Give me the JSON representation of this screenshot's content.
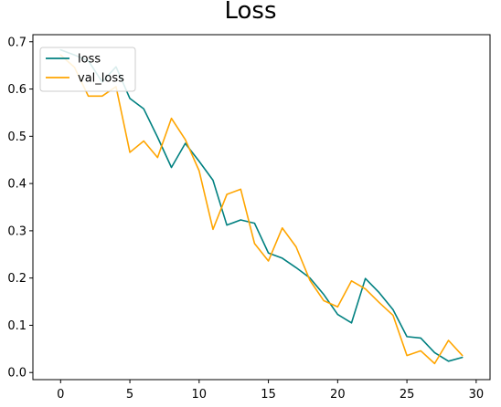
{
  "chart_data": {
    "type": "line",
    "title": "Loss",
    "xlabel": "",
    "ylabel": "",
    "xlim": [
      -2,
      31
    ],
    "ylim": [
      -0.015,
      0.715
    ],
    "xticks": [
      0,
      5,
      10,
      15,
      20,
      25,
      30
    ],
    "yticks": [
      0.0,
      0.1,
      0.2,
      0.3,
      0.4,
      0.5,
      0.6,
      0.7
    ],
    "grid": false,
    "legend_placement": "upper-left",
    "x": [
      0,
      1,
      2,
      3,
      4,
      5,
      6,
      7,
      8,
      9,
      10,
      11,
      12,
      13,
      14,
      15,
      16,
      17,
      18,
      19,
      20,
      21,
      22,
      23,
      24,
      25,
      26,
      27,
      28,
      29
    ],
    "series": [
      {
        "name": "loss",
        "color": "#008080",
        "values": [
          0.683,
          0.672,
          0.66,
          0.615,
          0.647,
          0.58,
          0.558,
          0.498,
          0.434,
          0.485,
          0.447,
          0.407,
          0.312,
          0.323,
          0.316,
          0.253,
          0.242,
          0.222,
          0.2,
          0.165,
          0.123,
          0.105,
          0.199,
          0.169,
          0.133,
          0.076,
          0.073,
          0.042,
          0.024,
          0.032
        ]
      },
      {
        "name": "val_loss",
        "color": "#ffa500",
        "values": [
          0.672,
          0.646,
          0.585,
          0.585,
          0.605,
          0.466,
          0.49,
          0.455,
          0.538,
          0.493,
          0.427,
          0.303,
          0.377,
          0.388,
          0.273,
          0.236,
          0.306,
          0.266,
          0.195,
          0.152,
          0.139,
          0.194,
          0.177,
          0.148,
          0.121,
          0.036,
          0.046,
          0.019,
          0.068,
          0.036
        ]
      }
    ]
  }
}
